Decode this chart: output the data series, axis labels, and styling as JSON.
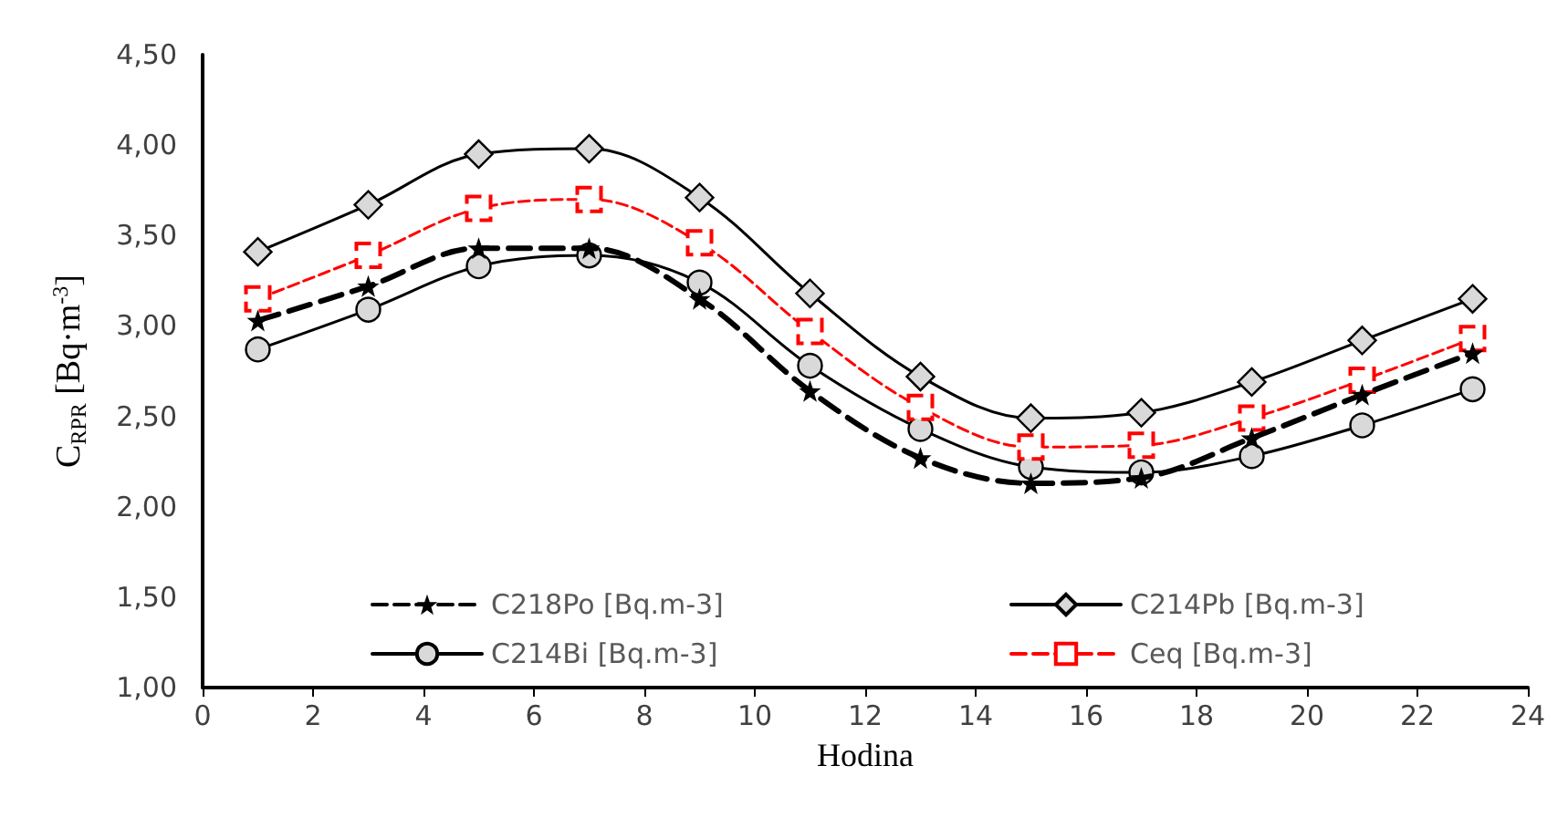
{
  "chart_data": {
    "type": "line",
    "xlabel": "Hodina",
    "ylabel": "C$_{RPR}$ [Bq·m$^{-3}$]",
    "x": [
      1,
      3,
      5,
      7,
      9,
      11,
      13,
      15,
      17,
      19,
      21,
      23
    ],
    "series": [
      {
        "name": "C218Po [Bq.m-3]",
        "color": "#000000",
        "marker": "star",
        "line_style": "dashed",
        "values": [
          3.03,
          3.22,
          3.43,
          3.43,
          3.15,
          2.64,
          2.27,
          2.13,
          2.16,
          2.38,
          2.62,
          2.85
        ]
      },
      {
        "name": "C214Pb [Bq.m-3]",
        "color": "#000000",
        "marker": "diamond",
        "line_style": "solid",
        "values": [
          3.41,
          3.67,
          3.95,
          3.98,
          3.71,
          3.18,
          2.72,
          2.49,
          2.52,
          2.69,
          2.92,
          3.15
        ]
      },
      {
        "name": "C214Bi [Bq.m-3]",
        "color": "#000000",
        "marker": "circle",
        "line_style": "solid",
        "values": [
          2.87,
          3.09,
          3.33,
          3.39,
          3.24,
          2.78,
          2.43,
          2.22,
          2.19,
          2.28,
          2.45,
          2.65
        ]
      },
      {
        "name": "Ceq [Bq.m-3]",
        "color": "#ff0000",
        "marker": "square",
        "line_style": "dashed",
        "values": [
          3.15,
          3.39,
          3.65,
          3.7,
          3.46,
          2.97,
          2.55,
          2.33,
          2.34,
          2.49,
          2.7,
          2.93
        ]
      }
    ],
    "xlim": [
      0,
      24
    ],
    "xticks": [
      0,
      2,
      4,
      6,
      8,
      10,
      12,
      14,
      16,
      18,
      20,
      22,
      24
    ],
    "ylim": [
      1,
      4.5
    ],
    "yticks": [
      {
        "value": 1,
        "label": "1,00"
      },
      {
        "value": 1.5,
        "label": "1,50"
      },
      {
        "value": 2,
        "label": "2,00"
      },
      {
        "value": 2.5,
        "label": "2,50"
      },
      {
        "value": 3,
        "label": "3,00"
      },
      {
        "value": 3.5,
        "label": "3,50"
      },
      {
        "value": 4,
        "label": "4,00"
      },
      {
        "value": 4.5,
        "label": "4,50"
      }
    ],
    "grid": false,
    "legend": "bottom"
  }
}
